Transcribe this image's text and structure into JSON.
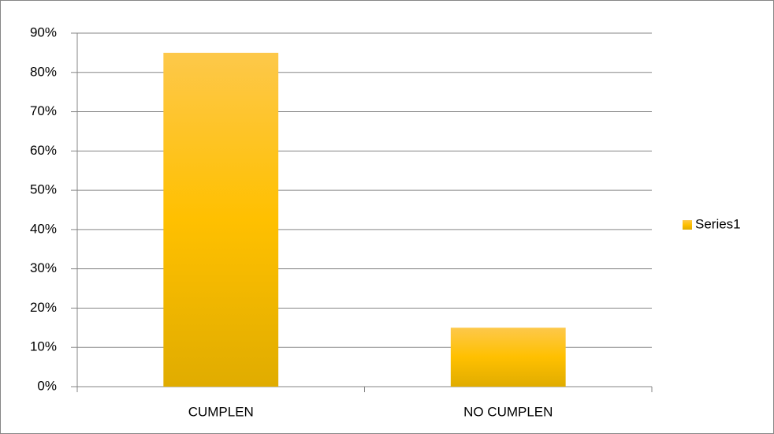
{
  "chart_data": {
    "type": "bar",
    "categories": [
      "CUMPLEN",
      "NO CUMPLEN"
    ],
    "series": [
      {
        "name": "Series1",
        "color": "#ffc000",
        "values": [
          85,
          15
        ]
      }
    ],
    "ylim": [
      0,
      90
    ],
    "yticks": [
      {
        "value": 0,
        "label": "0%"
      },
      {
        "value": 10,
        "label": "10%"
      },
      {
        "value": 20,
        "label": "20%"
      },
      {
        "value": 30,
        "label": "30%"
      },
      {
        "value": 40,
        "label": "40%"
      },
      {
        "value": 50,
        "label": "50%"
      },
      {
        "value": 60,
        "label": "60%"
      },
      {
        "value": 70,
        "label": "70%"
      },
      {
        "value": 80,
        "label": "80%"
      },
      {
        "value": 90,
        "label": "90%"
      }
    ],
    "grid": true,
    "legend": "right"
  }
}
